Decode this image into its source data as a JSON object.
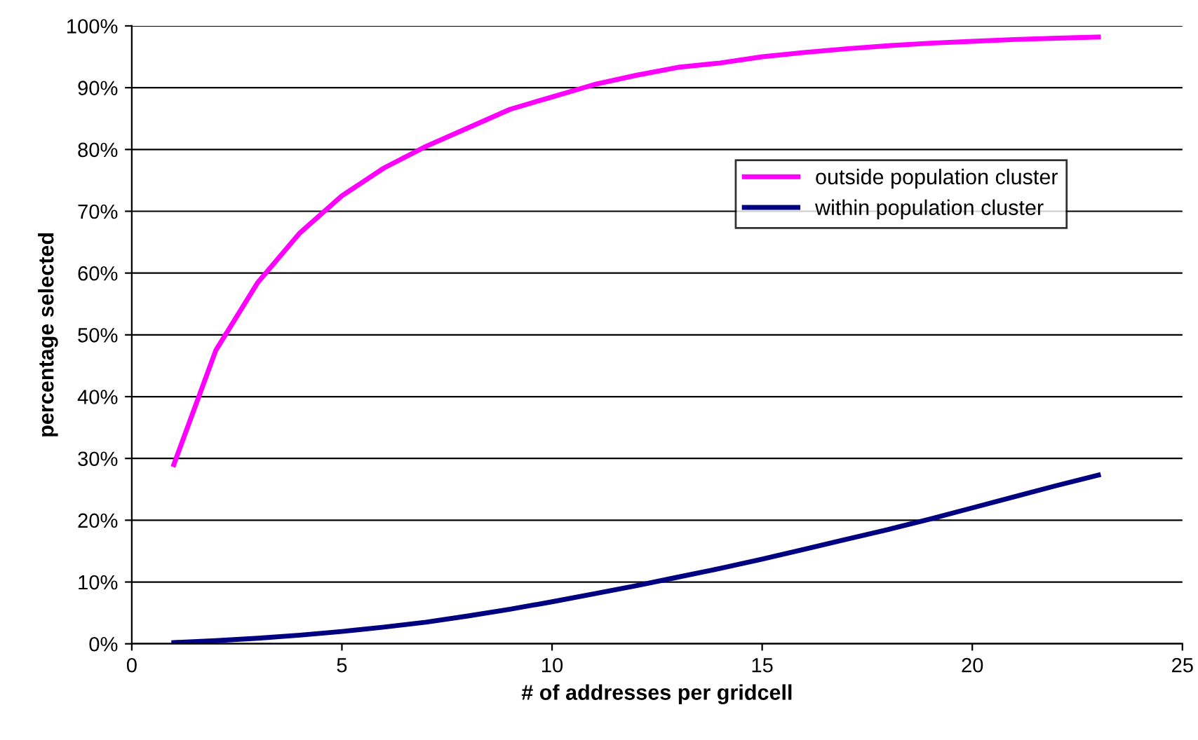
{
  "chart_data": {
    "type": "line",
    "xlabel": "# of addresses per gridcell",
    "ylabel": "percentage selected",
    "x": [
      1,
      2,
      3,
      4,
      5,
      6,
      7,
      8,
      9,
      10,
      11,
      12,
      13,
      14,
      15,
      16,
      17,
      18,
      19,
      20,
      21,
      22,
      23
    ],
    "series": [
      {
        "name": "outside population cluster",
        "color": "#ff00ff",
        "values": [
          29,
          47.5,
          58.5,
          66.5,
          72.5,
          77,
          80.5,
          83.5,
          86.5,
          88.5,
          90.5,
          92,
          93.3,
          94,
          95,
          95.7,
          96.3,
          96.8,
          97.2,
          97.5,
          97.8,
          98,
          98.2
        ]
      },
      {
        "name": "within population cluster",
        "color": "#000080",
        "values": [
          0.2,
          0.5,
          0.9,
          1.4,
          2,
          2.7,
          3.5,
          4.5,
          5.6,
          6.8,
          8.1,
          9.4,
          10.8,
          12.2,
          13.7,
          15.3,
          16.9,
          18.5,
          20.2,
          22,
          23.8,
          25.6,
          27.3
        ]
      }
    ],
    "xlim": [
      0,
      25
    ],
    "xticks": [
      0,
      5,
      10,
      15,
      20,
      25
    ],
    "ylim": [
      0,
      100
    ],
    "yticks": [
      {
        "value": 0,
        "label": "0%"
      },
      {
        "value": 10,
        "label": "10%"
      },
      {
        "value": 20,
        "label": "20%"
      },
      {
        "value": 30,
        "label": "30%"
      },
      {
        "value": 40,
        "label": "40%"
      },
      {
        "value": 50,
        "label": "50%"
      },
      {
        "value": 60,
        "label": "60%"
      },
      {
        "value": 70,
        "label": "70%"
      },
      {
        "value": 80,
        "label": "80%"
      },
      {
        "value": 90,
        "label": "90%"
      },
      {
        "value": 100,
        "label": "100%"
      }
    ],
    "grid": "y",
    "legend": "top right",
    "marker": "none",
    "line_style": "solid"
  }
}
